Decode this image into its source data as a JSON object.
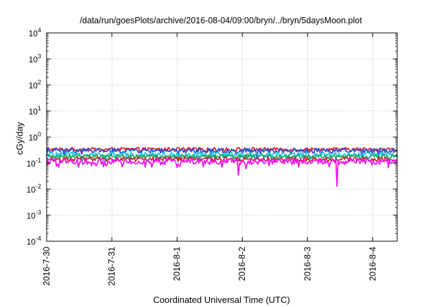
{
  "chart_data": {
    "type": "line",
    "title": "/data/run/goesPlots/archive/2016-08-04/09:00/bryn/../bryn/5daysMoon.plot",
    "xlabel": "Coordinated Universal Time (UTC)",
    "ylabel": "cGy/day",
    "yscale": "log",
    "ylim": [
      0.0001,
      10000
    ],
    "xlim": [
      "2016-07-30 00:00",
      "2016-08-04 09:00"
    ],
    "grid": true,
    "legend": "none",
    "y_ticks": [
      {
        "mant": "10",
        "exp": "-4"
      },
      {
        "mant": "10",
        "exp": "-3"
      },
      {
        "mant": "10",
        "exp": "-2"
      },
      {
        "mant": "10",
        "exp": "-1"
      },
      {
        "mant": "10",
        "exp": "0"
      },
      {
        "mant": "10",
        "exp": "1"
      },
      {
        "mant": "10",
        "exp": "2"
      },
      {
        "mant": "10",
        "exp": "3"
      },
      {
        "mant": "10",
        "exp": "4"
      }
    ],
    "x_ticks": [
      "2016-7-30",
      "2016-7-31",
      "2016-8-1",
      "2016-8-2",
      "2016-8-3",
      "2016-8-4"
    ],
    "series": [
      {
        "color": "#e8202c",
        "base": 0.33,
        "amp": 0.12,
        "dips": []
      },
      {
        "color": "#2a4fd8",
        "base": 0.3,
        "amp": 0.13,
        "dips": [
          [
            0.05,
            0.16
          ],
          [
            0.47,
            0.17
          ],
          [
            0.6,
            0.15
          ],
          [
            0.9,
            0.16
          ]
        ]
      },
      {
        "color": "#20c8e0",
        "base": 0.21,
        "amp": 0.1,
        "dips": [
          [
            0.2,
            0.12
          ],
          [
            0.55,
            0.12
          ],
          [
            0.75,
            0.13
          ]
        ]
      },
      {
        "color": "#18a860",
        "base": 0.175,
        "amp": 0.07,
        "dips": []
      },
      {
        "color": "#c8282c",
        "base": 0.14,
        "amp": 0.06,
        "dips": []
      },
      {
        "color": "#f018f0",
        "base": 0.115,
        "amp": 0.06,
        "dips": [
          [
            0.0,
            0.08
          ],
          [
            0.035,
            0.07
          ],
          [
            0.09,
            0.07
          ],
          [
            0.17,
            0.08
          ],
          [
            0.3,
            0.07
          ],
          [
            0.38,
            0.08
          ],
          [
            0.5,
            0.07
          ],
          [
            0.548,
            0.035
          ],
          [
            0.568,
            0.06
          ],
          [
            0.72,
            0.07
          ],
          [
            0.829,
            0.013
          ],
          [
            0.95,
            0.09
          ]
        ]
      }
    ]
  }
}
